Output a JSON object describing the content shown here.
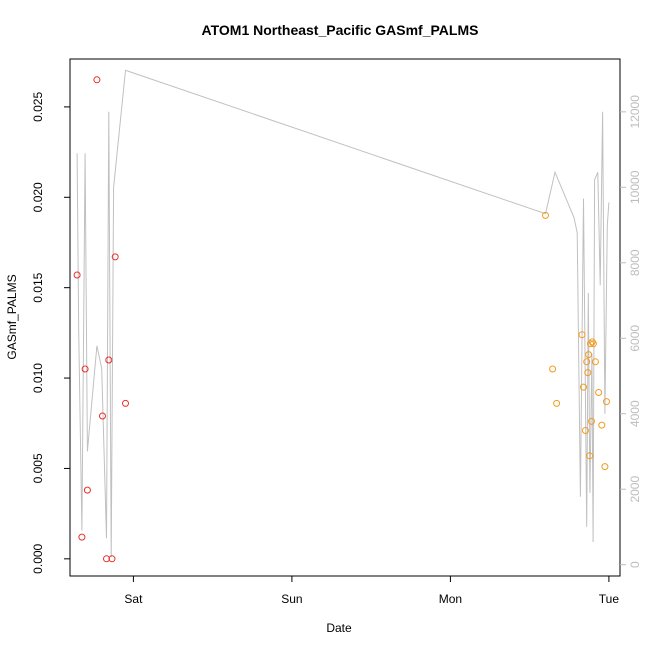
{
  "chart_data": {
    "type": "scatter",
    "title": "ATOM1 Northeast_Pacific GASmf_PALMS",
    "xlabel": "Date",
    "ylabel": "GASmf_PALMS",
    "x_unit": "days",
    "xlim": [
      -0.4,
      3.07
    ],
    "ylim": [
      -0.00095,
      0.02765
    ],
    "x_ticks": [
      {
        "value": 0,
        "label": "Sat"
      },
      {
        "value": 1,
        "label": "Sun"
      },
      {
        "value": 2,
        "label": "Mon"
      },
      {
        "value": 3,
        "label": "Tue"
      }
    ],
    "y_ticks": [
      {
        "value": 0.0,
        "label": "0.000"
      },
      {
        "value": 0.005,
        "label": "0.005"
      },
      {
        "value": 0.01,
        "label": "0.010"
      },
      {
        "value": 0.015,
        "label": "0.015"
      },
      {
        "value": 0.02,
        "label": "0.020"
      },
      {
        "value": 0.025,
        "label": "0.025"
      }
    ],
    "y2lim": [
      -300,
      13400
    ],
    "y2_ticks": [
      {
        "value": 0,
        "label": "0"
      },
      {
        "value": 2000,
        "label": "2000"
      },
      {
        "value": 4000,
        "label": "4000"
      },
      {
        "value": 6000,
        "label": "6000"
      },
      {
        "value": 8000,
        "label": "8000"
      },
      {
        "value": 10000,
        "label": "10000"
      },
      {
        "value": 12000,
        "label": "12000"
      }
    ],
    "grid": false,
    "series": [
      {
        "color": "#e8302a",
        "x": [
          -0.355,
          -0.325,
          -0.305,
          -0.29,
          -0.23,
          -0.195,
          -0.17,
          -0.155,
          -0.135,
          -0.115,
          -0.05
        ],
        "y": [
          0.0157,
          0.0012,
          0.0105,
          0.0038,
          0.0265,
          0.0079,
          0.0,
          0.011,
          0.0,
          0.0167,
          0.0086
        ]
      },
      {
        "color": "#f39b1e",
        "x": [
          2.6,
          2.645,
          2.67,
          2.83,
          2.84,
          2.852,
          2.86,
          2.867,
          2.872,
          2.878,
          2.884,
          2.89,
          2.895,
          2.902,
          2.915,
          2.935,
          2.955,
          2.975,
          2.985
        ],
        "y": [
          0.019,
          0.0105,
          0.0086,
          0.0124,
          0.0095,
          0.0071,
          0.0109,
          0.0103,
          0.0113,
          0.0057,
          0.0119,
          0.0076,
          0.012,
          0.0119,
          0.0109,
          0.0092,
          0.0074,
          0.0051,
          0.0087
        ]
      }
    ],
    "secondary_line": {
      "color": "#c0c0c0",
      "x": [
        -0.355,
        -0.345,
        -0.325,
        -0.305,
        -0.29,
        -0.23,
        -0.2,
        -0.17,
        -0.155,
        -0.14,
        -0.125,
        -0.05,
        2.6,
        2.66,
        2.78,
        2.8,
        2.82,
        2.84,
        2.86,
        2.87,
        2.88,
        2.893,
        2.9,
        2.91,
        2.93,
        2.945,
        2.96,
        2.975,
        2.99,
        3.0
      ],
      "y": [
        10900,
        6200,
        900,
        10900,
        3000,
        5800,
        5200,
        700,
        12000,
        200,
        10000,
        13100,
        9300,
        10400,
        9200,
        8800,
        1800,
        9700,
        1000,
        7200,
        1900,
        5600,
        600,
        10200,
        10400,
        7400,
        12000,
        4000,
        9000,
        9600
      ]
    }
  }
}
